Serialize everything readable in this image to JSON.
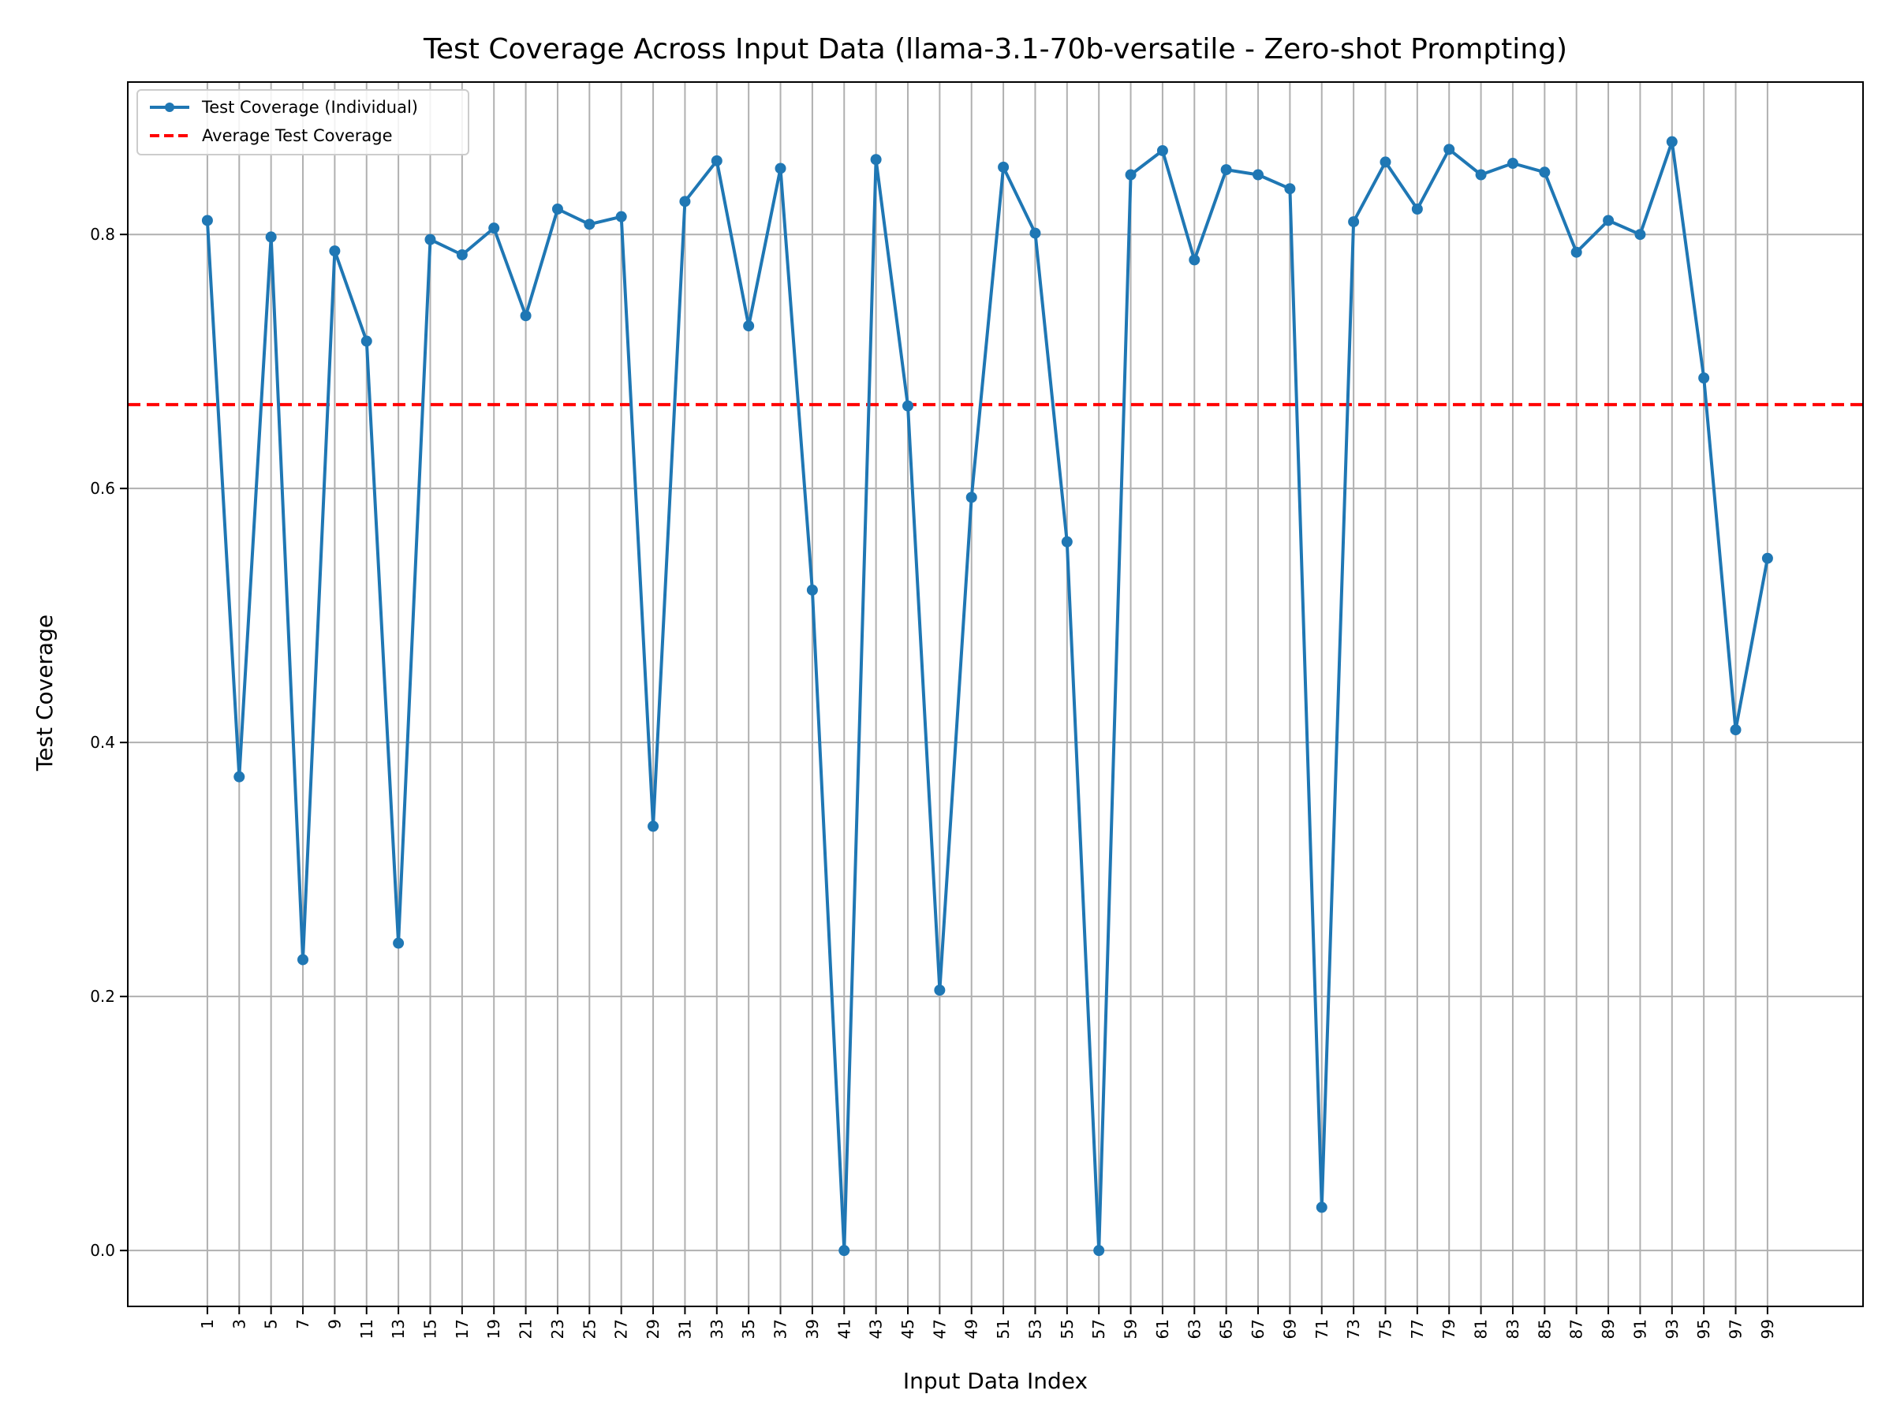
{
  "chart_data": {
    "type": "line",
    "title": "Test Coverage Across Input Data (llama-3.1-70b-versatile - Zero-shot Prompting)",
    "xlabel": "Input Data Index",
    "ylabel": "Test Coverage",
    "x": [
      1,
      3,
      5,
      7,
      9,
      11,
      13,
      15,
      17,
      19,
      21,
      23,
      25,
      27,
      29,
      31,
      33,
      35,
      37,
      39,
      41,
      43,
      45,
      47,
      49,
      51,
      53,
      55,
      57,
      59,
      61,
      63,
      65,
      67,
      69,
      71,
      73,
      75,
      77,
      79,
      81,
      83,
      85,
      87,
      89,
      91,
      93,
      95,
      97,
      99
    ],
    "x_tick_labels": [
      "1",
      "3",
      "5",
      "7",
      "9",
      "11",
      "13",
      "15",
      "17",
      "19",
      "21",
      "23",
      "25",
      "27",
      "29",
      "31",
      "33",
      "35",
      "37",
      "39",
      "41",
      "43",
      "45",
      "47",
      "49",
      "51",
      "53",
      "55",
      "57",
      "59",
      "61",
      "63",
      "65",
      "67",
      "69",
      "71",
      "73",
      "75",
      "77",
      "79",
      "81",
      "83",
      "85",
      "87",
      "89",
      "91",
      "93",
      "95",
      "97",
      "99"
    ],
    "xlim": [
      -4,
      105
    ],
    "ylim": [
      -0.044,
      0.92
    ],
    "y_ticks": [
      0.0,
      0.2,
      0.4,
      0.6,
      0.8
    ],
    "y_tick_labels": [
      "0.0",
      "0.2",
      "0.4",
      "0.6",
      "0.8"
    ],
    "grid": true,
    "legend_position": "top-left",
    "series": [
      {
        "name": "Test Coverage (Individual)",
        "color": "#1f77b4",
        "style": "solid-with-markers",
        "values": [
          0.811,
          0.373,
          0.798,
          0.229,
          0.787,
          0.716,
          0.242,
          0.796,
          0.784,
          0.805,
          0.736,
          0.82,
          0.808,
          0.814,
          0.334,
          0.826,
          0.858,
          0.728,
          0.852,
          0.52,
          0.0,
          0.859,
          0.665,
          0.205,
          0.593,
          0.853,
          0.801,
          0.558,
          0.0,
          0.847,
          0.866,
          0.78,
          0.851,
          0.847,
          0.836,
          0.034,
          0.81,
          0.857,
          0.82,
          0.867,
          0.847,
          0.856,
          0.849,
          0.786,
          0.811,
          0.8,
          0.873,
          0.687,
          0.41,
          0.545
        ]
      }
    ],
    "reference_lines": [
      {
        "name": "Average Test Coverage",
        "color": "#ff0000",
        "style": "dashed",
        "value": 0.666
      }
    ]
  }
}
